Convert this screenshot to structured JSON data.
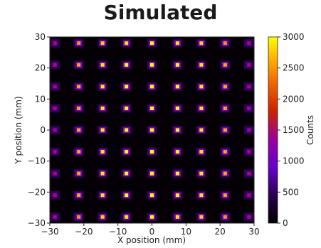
{
  "page": {
    "title": "Simulated"
  },
  "chart_data": {
    "type": "heatmap",
    "title": "Simulated",
    "xlabel": "X position (mm)",
    "ylabel": "Y position (mm)",
    "colorbar_label": "Counts",
    "xlim": [
      -30,
      30
    ],
    "ylim": [
      -30,
      30
    ],
    "xticks": [
      -30,
      -20,
      -10,
      0,
      10,
      20,
      30
    ],
    "yticks": [
      -30,
      -20,
      -10,
      0,
      10,
      20,
      30
    ],
    "xtick_labels": [
      "−30",
      "−20",
      "−10",
      "0",
      "10",
      "20",
      "30"
    ],
    "ytick_labels": [
      "−30",
      "−20",
      "−10",
      "0",
      "10",
      "20",
      "30"
    ],
    "colorbar_range": [
      0,
      3000
    ],
    "colorbar_ticks": [
      0,
      500,
      1000,
      1500,
      2000,
      2500,
      3000
    ],
    "colormap": "gnuplot",
    "spot_grid": {
      "x_positions": [
        -28.5,
        -21.5,
        -14.5,
        -7.5,
        0,
        7.5,
        14.5,
        21.5,
        28.5
      ],
      "y_positions": [
        28,
        21,
        14,
        7,
        0,
        -7,
        -14,
        -21,
        -28
      ],
      "peak_counts": [
        [
          1500,
          2500,
          2800,
          2900,
          3000,
          2900,
          2800,
          2500,
          1500
        ],
        [
          1500,
          2600,
          2900,
          3000,
          3000,
          3000,
          2900,
          2600,
          1500
        ],
        [
          1500,
          2600,
          2900,
          3000,
          3000,
          3000,
          2900,
          2600,
          1500
        ],
        [
          1500,
          2600,
          2900,
          3000,
          3000,
          3000,
          2900,
          2600,
          1500
        ],
        [
          1400,
          2600,
          2900,
          3000,
          3000,
          3000,
          2900,
          2600,
          1400
        ],
        [
          1500,
          2600,
          2900,
          3000,
          3000,
          3000,
          2900,
          2600,
          1500
        ],
        [
          1500,
          2600,
          2900,
          3000,
          3000,
          3000,
          2900,
          2600,
          1500
        ],
        [
          1500,
          2600,
          2900,
          3000,
          3000,
          3000,
          2900,
          2600,
          1500
        ],
        [
          1500,
          2500,
          2800,
          2900,
          3000,
          2900,
          2800,
          2500,
          1500
        ]
      ]
    },
    "grid": false
  }
}
